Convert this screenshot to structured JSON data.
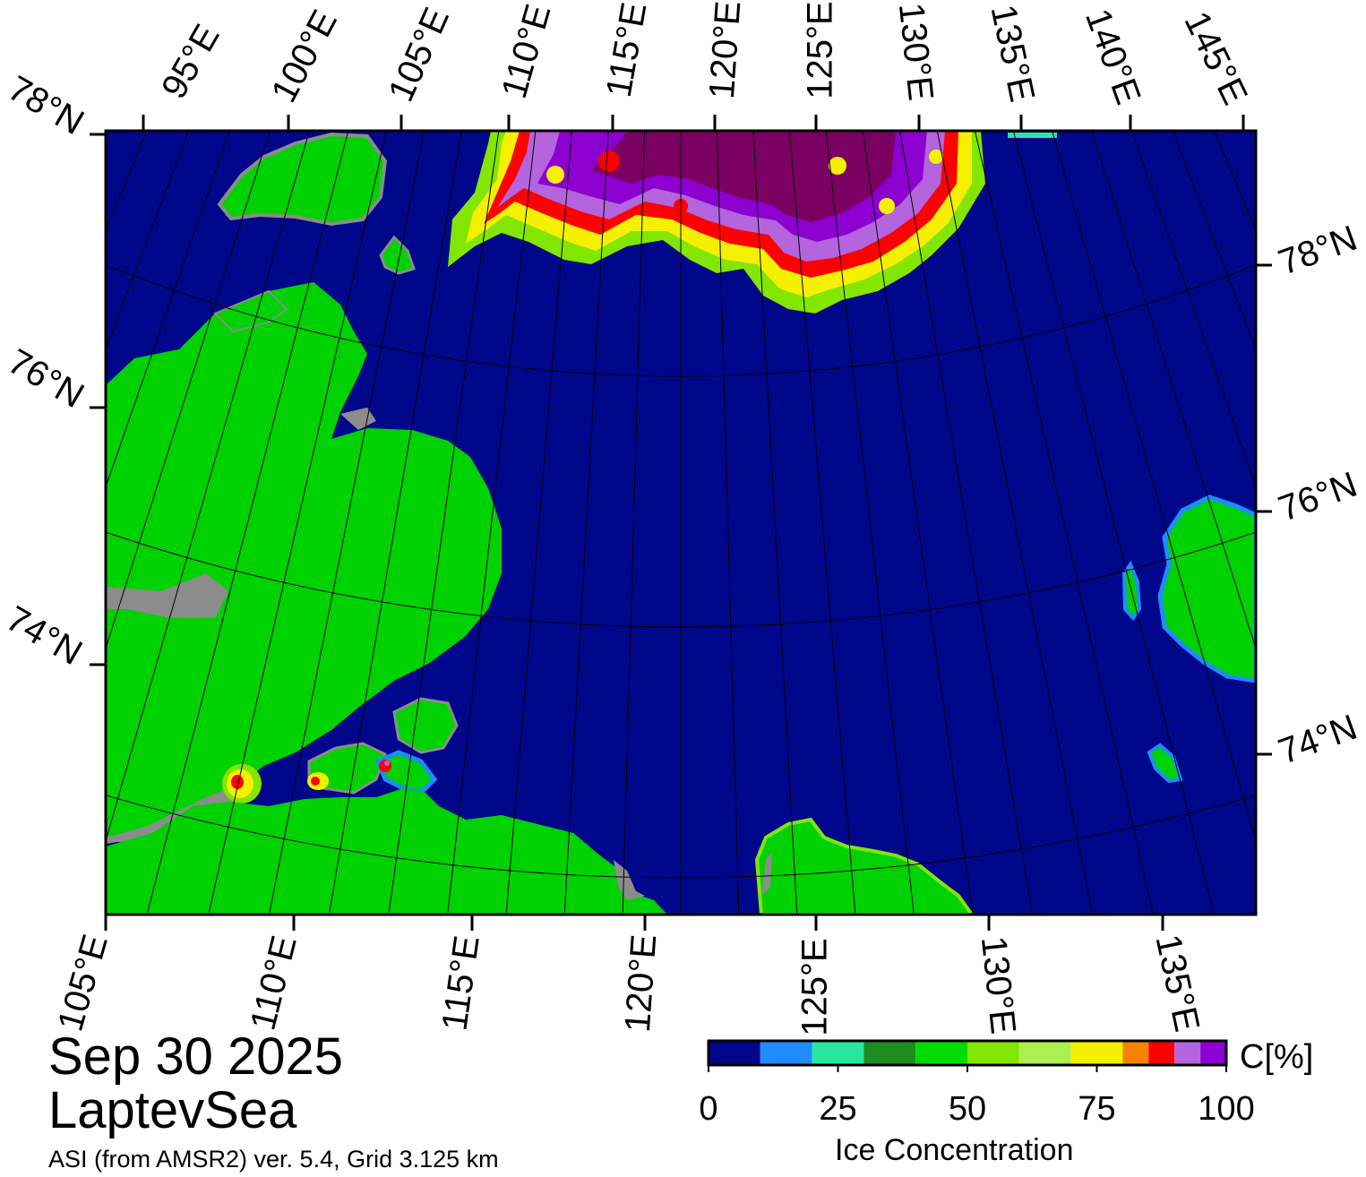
{
  "map": {
    "date": "Sep 30 2025",
    "region": "LaptevSea",
    "source": "ASI (from AMSR2) ver. 5.4,  Grid 3.125 km",
    "top_lon_labels": [
      "95°E",
      "100°E",
      "105°E",
      "110°E",
      "115°E",
      "120°E",
      "125°E",
      "130°E",
      "135°E",
      "140°E",
      "145°E"
    ],
    "left_lat_labels": [
      "78°N",
      "76°N",
      "74°N"
    ],
    "right_lat_labels": [
      "78°N",
      "76°N",
      "74°N"
    ],
    "bottom_lon_labels": [
      "105°E",
      "110°E",
      "115°E",
      "120°E",
      "125°E",
      "130°E",
      "135°E"
    ],
    "colors": {
      "ocean": "#00078a",
      "land": "#00d100",
      "land_missing": "#8c8c8c",
      "ice_high": "#7a0061",
      "ice_purple": "#8c00d0"
    }
  },
  "colorbar": {
    "title": "Ice Concentration",
    "unit": "C[%]",
    "tick_labels": [
      "0",
      "25",
      "50",
      "75",
      "100"
    ],
    "tick_values": [
      0,
      25,
      50,
      75,
      100
    ],
    "range": [
      0,
      100
    ],
    "bins": [
      {
        "from": 0,
        "to": 10,
        "color": "#00078a"
      },
      {
        "from": 10,
        "to": 20,
        "color": "#1e8cff"
      },
      {
        "from": 20,
        "to": 30,
        "color": "#28e6a0"
      },
      {
        "from": 30,
        "to": 40,
        "color": "#1e8c1e"
      },
      {
        "from": 40,
        "to": 50,
        "color": "#00dc00"
      },
      {
        "from": 50,
        "to": 60,
        "color": "#82e600"
      },
      {
        "from": 60,
        "to": 70,
        "color": "#aaf050"
      },
      {
        "from": 70,
        "to": 80,
        "color": "#f5f000"
      },
      {
        "from": 80,
        "to": 85,
        "color": "#f58200"
      },
      {
        "from": 85,
        "to": 90,
        "color": "#ff0000"
      },
      {
        "from": 90,
        "to": 95,
        "color": "#b464dc"
      },
      {
        "from": 95,
        "to": 100,
        "color": "#8c00d2"
      }
    ]
  }
}
